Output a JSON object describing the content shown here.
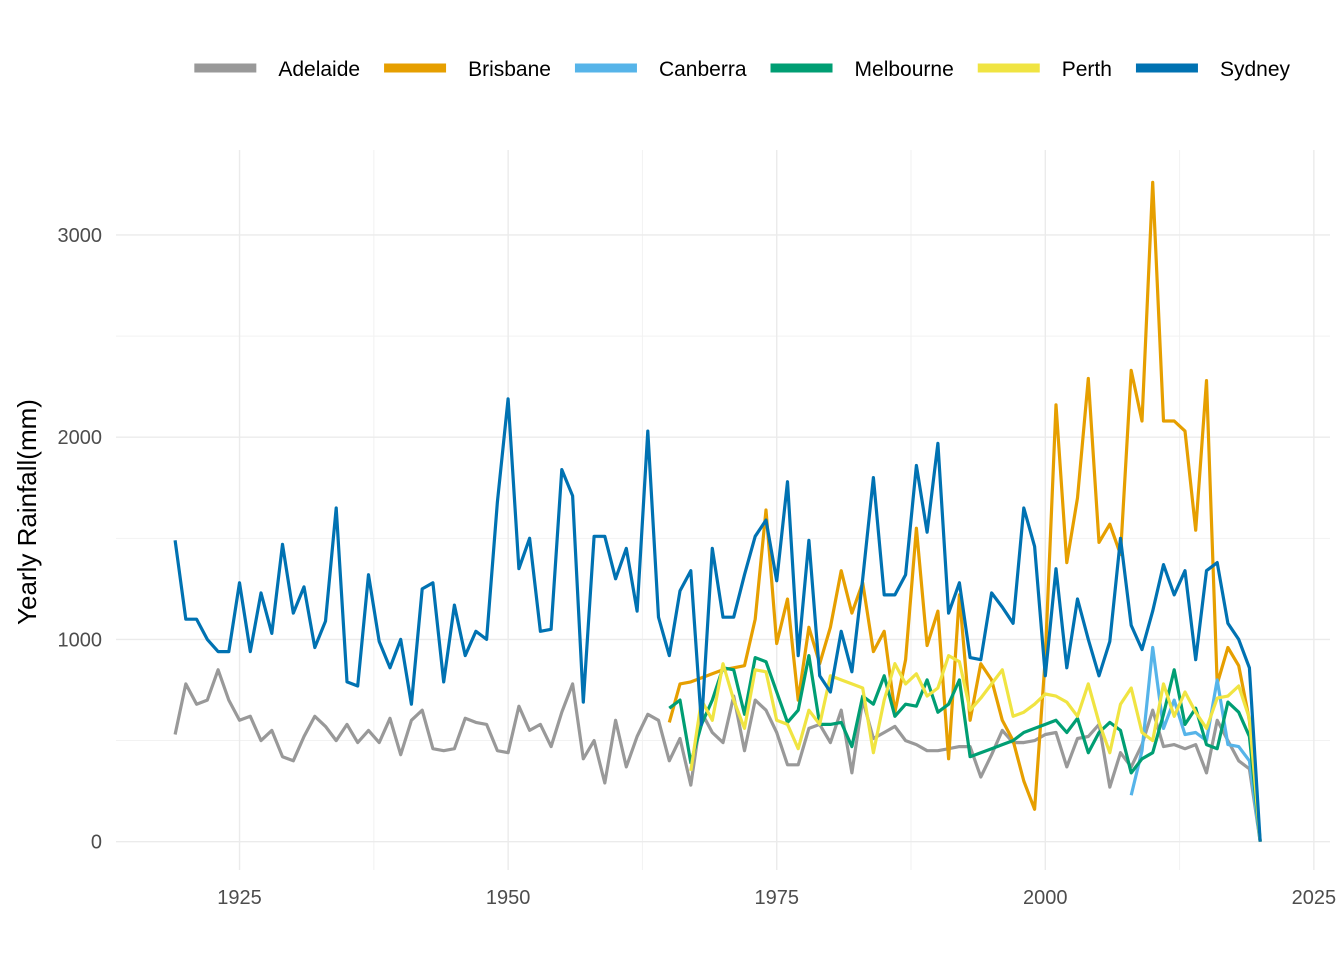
{
  "chart_data": {
    "type": "line",
    "title": "",
    "xlabel": "",
    "ylabel": "Yearly Rainfall(mm)",
    "xlim": [
      1913.5,
      2026.5
    ],
    "ylim": [
      -140,
      3420
    ],
    "x_ticks": [
      1925,
      1950,
      1975,
      2000,
      2025
    ],
    "y_ticks": [
      0,
      1000,
      2000,
      3000
    ],
    "grid": true,
    "legend_position": "top",
    "series": [
      {
        "name": "Adelaide",
        "color": "#999999",
        "x": [
          1919,
          1920,
          1921,
          1922,
          1923,
          1924,
          1925,
          1926,
          1927,
          1928,
          1929,
          1930,
          1931,
          1932,
          1933,
          1934,
          1935,
          1936,
          1937,
          1938,
          1939,
          1940,
          1941,
          1942,
          1943,
          1944,
          1945,
          1946,
          1947,
          1948,
          1949,
          1950,
          1951,
          1952,
          1953,
          1954,
          1955,
          1956,
          1957,
          1958,
          1959,
          1960,
          1961,
          1962,
          1963,
          1964,
          1965,
          1966,
          1967,
          1968,
          1969,
          1970,
          1971,
          1972,
          1973,
          1974,
          1975,
          1976,
          1977,
          1978,
          1979,
          1980,
          1981,
          1982,
          1983,
          1984,
          1985,
          1986,
          1987,
          1988,
          1989,
          1990,
          1991,
          1992,
          1993,
          1994,
          1995,
          1996,
          1997,
          1998,
          1999,
          2000,
          2001,
          2002,
          2003,
          2004,
          2005,
          2006,
          2007,
          2008,
          2009,
          2010,
          2011,
          2012,
          2013,
          2014,
          2015,
          2016,
          2017,
          2018,
          2019,
          2020
        ],
        "values": [
          530,
          780,
          680,
          700,
          850,
          700,
          600,
          620,
          500,
          550,
          420,
          400,
          520,
          620,
          570,
          500,
          580,
          490,
          550,
          490,
          610,
          430,
          600,
          650,
          460,
          450,
          460,
          610,
          590,
          580,
          450,
          440,
          670,
          550,
          580,
          470,
          640,
          780,
          410,
          500,
          290,
          600,
          370,
          520,
          630,
          600,
          400,
          510,
          280,
          640,
          540,
          490,
          720,
          450,
          700,
          650,
          540,
          380,
          380,
          560,
          580,
          490,
          650,
          340,
          700,
          510,
          540,
          570,
          500,
          480,
          450,
          450,
          460,
          470,
          470,
          320,
          430,
          550,
          490,
          490,
          500,
          530,
          540,
          370,
          510,
          520,
          580,
          270,
          440,
          370,
          480,
          650,
          470,
          480,
          460,
          480,
          340,
          600,
          500,
          400,
          360,
          0
        ]
      },
      {
        "name": "Brisbane",
        "color": "#E69F00",
        "x": [
          1965,
          1966,
          1967,
          1968,
          1969,
          1970,
          1971,
          1972,
          1973,
          1974,
          1975,
          1976,
          1977,
          1978,
          1979,
          1980,
          1981,
          1982,
          1983,
          1984,
          1985,
          1986,
          1987,
          1988,
          1989,
          1990,
          1991,
          1992,
          1993,
          1994,
          1995,
          1996,
          1997,
          1998,
          1999,
          2000,
          2001,
          2002,
          2003,
          2004,
          2005,
          2006,
          2007,
          2008,
          2009,
          2010,
          2011,
          2012,
          2013,
          2014,
          2015,
          2016,
          2017,
          2018,
          2019,
          2020
        ],
        "values": [
          590,
          780,
          790,
          810,
          830,
          850,
          860,
          870,
          1100,
          1640,
          980,
          1200,
          700,
          1060,
          880,
          1060,
          1340,
          1130,
          1280,
          940,
          1040,
          640,
          900,
          1550,
          970,
          1140,
          410,
          1220,
          600,
          880,
          800,
          600,
          500,
          300,
          160,
          910,
          2160,
          1380,
          1700,
          2290,
          1480,
          1570,
          1420,
          2330,
          2080,
          3260,
          2080,
          2080,
          2030,
          1540,
          2280,
          780,
          960,
          870,
          600,
          0
        ]
      },
      {
        "name": "Canberra",
        "color": "#56B4E9",
        "x": [
          2008,
          2009,
          2010,
          2011,
          2012,
          2013,
          2014,
          2015,
          2016,
          2017,
          2018,
          2019,
          2020
        ],
        "values": [
          230,
          450,
          960,
          560,
          700,
          530,
          540,
          500,
          800,
          480,
          470,
          400,
          0
        ]
      },
      {
        "name": "Melbourne",
        "color": "#009E73",
        "x": [
          1965,
          1966,
          1967,
          1968,
          1969,
          1970,
          1971,
          1972,
          1973,
          1974,
          1975,
          1976,
          1977,
          1978,
          1979,
          1980,
          1981,
          1982,
          1983,
          1984,
          1985,
          1986,
          1987,
          1988,
          1989,
          1990,
          1991,
          1992,
          1993,
          1994,
          1995,
          1996,
          1997,
          1998,
          1999,
          2000,
          2001,
          2002,
          2003,
          2004,
          2005,
          2006,
          2007,
          2008,
          2009,
          2010,
          2011,
          2012,
          2013,
          2014,
          2015,
          2016,
          2017,
          2018,
          2019,
          2020
        ],
        "values": [
          660,
          700,
          390,
          580,
          700,
          860,
          850,
          630,
          910,
          890,
          740,
          590,
          650,
          920,
          580,
          580,
          590,
          470,
          720,
          680,
          820,
          620,
          680,
          670,
          800,
          640,
          680,
          800,
          420,
          440,
          460,
          480,
          500,
          540,
          560,
          580,
          600,
          540,
          610,
          440,
          540,
          590,
          550,
          340,
          410,
          440,
          630,
          850,
          580,
          660,
          480,
          460,
          690,
          640,
          520,
          0
        ]
      },
      {
        "name": "Perth",
        "color": "#F0E442",
        "x": [
          1967,
          1968,
          1969,
          1970,
          1971,
          1972,
          1973,
          1974,
          1975,
          1976,
          1977,
          1978,
          1979,
          1980,
          1981,
          1982,
          1983,
          1984,
          1985,
          1986,
          1987,
          1988,
          1989,
          1990,
          1991,
          1992,
          1993,
          1994,
          1995,
          1996,
          1997,
          1998,
          1999,
          2000,
          2001,
          2002,
          2003,
          2004,
          2005,
          2006,
          2007,
          2008,
          2009,
          2010,
          2011,
          2012,
          2013,
          2014,
          2015,
          2016,
          2017,
          2018,
          2019,
          2020
        ],
        "values": [
          350,
          700,
          600,
          880,
          700,
          560,
          850,
          840,
          600,
          580,
          460,
          650,
          580,
          820,
          800,
          780,
          760,
          440,
          700,
          880,
          780,
          830,
          720,
          760,
          920,
          890,
          650,
          710,
          780,
          850,
          620,
          640,
          680,
          730,
          720,
          690,
          620,
          780,
          590,
          440,
          680,
          760,
          540,
          500,
          780,
          620,
          740,
          640,
          560,
          710,
          720,
          770,
          610,
          0
        ]
      },
      {
        "name": "Sydney",
        "color": "#0072B2",
        "x": [
          1919,
          1920,
          1921,
          1922,
          1923,
          1924,
          1925,
          1926,
          1927,
          1928,
          1929,
          1930,
          1931,
          1932,
          1933,
          1934,
          1935,
          1936,
          1937,
          1938,
          1939,
          1940,
          1941,
          1942,
          1943,
          1944,
          1945,
          1946,
          1947,
          1948,
          1949,
          1950,
          1951,
          1952,
          1953,
          1954,
          1955,
          1956,
          1957,
          1958,
          1959,
          1960,
          1961,
          1962,
          1963,
          1964,
          1965,
          1966,
          1967,
          1968,
          1969,
          1970,
          1971,
          1972,
          1973,
          1974,
          1975,
          1976,
          1977,
          1978,
          1979,
          1980,
          1981,
          1982,
          1983,
          1984,
          1985,
          1986,
          1987,
          1988,
          1989,
          1990,
          1991,
          1992,
          1993,
          1994,
          1995,
          1996,
          1997,
          1998,
          1999,
          2000,
          2001,
          2002,
          2003,
          2004,
          2005,
          2006,
          2007,
          2008,
          2009,
          2010,
          2011,
          2012,
          2013,
          2014,
          2015,
          2016,
          2017,
          2018,
          2019,
          2020
        ],
        "values": [
          1490,
          1100,
          1100,
          1000,
          940,
          940,
          1280,
          940,
          1230,
          1030,
          1470,
          1130,
          1260,
          960,
          1090,
          1650,
          790,
          770,
          1320,
          990,
          860,
          1000,
          680,
          1250,
          1280,
          790,
          1170,
          920,
          1040,
          1000,
          1680,
          2190,
          1350,
          1500,
          1040,
          1050,
          1840,
          1710,
          690,
          1510,
          1510,
          1300,
          1450,
          1140,
          2030,
          1110,
          920,
          1240,
          1340,
          580,
          1450,
          1110,
          1110,
          1320,
          1510,
          1590,
          1290,
          1780,
          920,
          1490,
          820,
          740,
          1040,
          840,
          1300,
          1800,
          1220,
          1220,
          1320,
          1860,
          1530,
          1970,
          1130,
          1280,
          910,
          900,
          1230,
          1160,
          1080,
          1650,
          1460,
          820,
          1350,
          860,
          1200,
          1000,
          820,
          990,
          1500,
          1070,
          950,
          1140,
          1370,
          1220,
          1340,
          900,
          1340,
          1380,
          1080,
          1000,
          860,
          0
        ]
      }
    ]
  }
}
